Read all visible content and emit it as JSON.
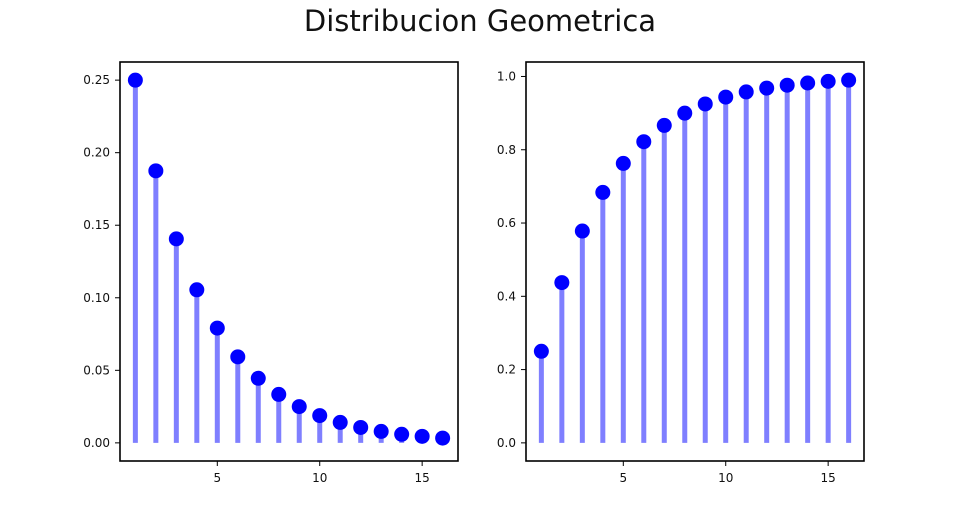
{
  "figure": {
    "title": "Distribucion Geometrica"
  },
  "colors": {
    "marker": "#0000ff",
    "stem": "#7f7fff",
    "axis": "#000000"
  },
  "chart_data": [
    {
      "type": "stem",
      "title": "",
      "xlabel": "",
      "ylabel": "",
      "x": [
        1,
        2,
        3,
        4,
        5,
        6,
        7,
        8,
        9,
        10,
        11,
        12,
        13,
        14,
        15,
        16
      ],
      "values": [
        0.25,
        0.1875,
        0.1406,
        0.1055,
        0.0791,
        0.0593,
        0.0445,
        0.0334,
        0.025,
        0.0188,
        0.0141,
        0.0106,
        0.0079,
        0.0059,
        0.0045,
        0.0033
      ],
      "xlim": [
        0.25,
        16.75
      ],
      "ylim": [
        -0.0125,
        0.2625
      ],
      "xticks": [
        5,
        10,
        15
      ],
      "xtick_labels": [
        "5",
        "10",
        "15"
      ],
      "yticks": [
        0.0,
        0.05,
        0.1,
        0.15,
        0.2,
        0.25
      ],
      "ytick_labels": [
        "0.00",
        "0.05",
        "0.10",
        "0.15",
        "0.20",
        "0.25"
      ],
      "grid": false
    },
    {
      "type": "stem",
      "title": "",
      "xlabel": "",
      "ylabel": "",
      "x": [
        1,
        2,
        3,
        4,
        5,
        6,
        7,
        8,
        9,
        10,
        11,
        12,
        13,
        14,
        15,
        16
      ],
      "values": [
        0.25,
        0.4375,
        0.5781,
        0.6836,
        0.7627,
        0.822,
        0.8665,
        0.8999,
        0.9249,
        0.9437,
        0.9578,
        0.9683,
        0.9762,
        0.9822,
        0.9866,
        0.99
      ],
      "xlim": [
        0.25,
        16.75
      ],
      "ylim": [
        -0.0495,
        1.0395
      ],
      "xticks": [
        5,
        10,
        15
      ],
      "xtick_labels": [
        "5",
        "10",
        "15"
      ],
      "yticks": [
        0.0,
        0.2,
        0.4,
        0.6,
        0.8,
        1.0
      ],
      "ytick_labels": [
        "0.0",
        "0.2",
        "0.4",
        "0.6",
        "0.8",
        "1.0"
      ],
      "grid": false
    }
  ]
}
